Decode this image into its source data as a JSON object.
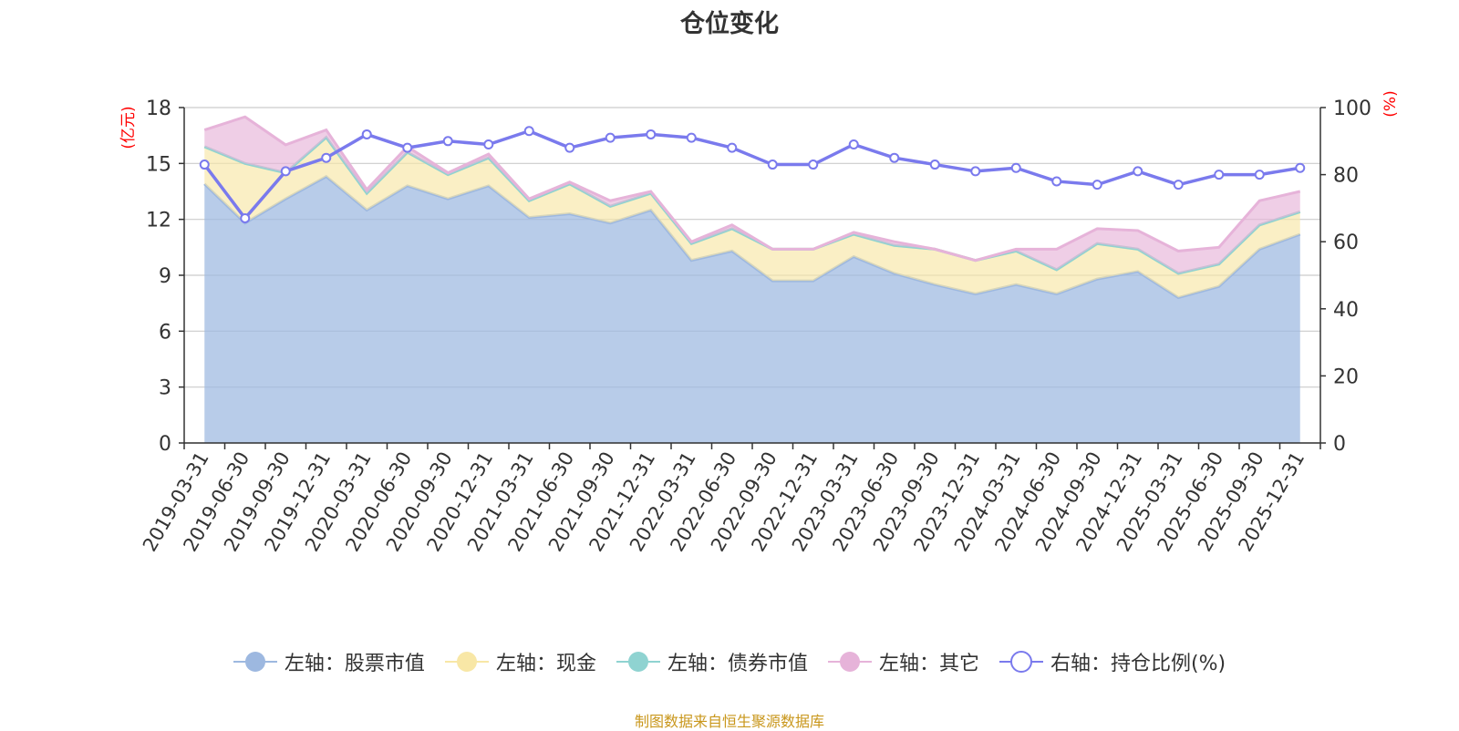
{
  "title": "仓位变化",
  "source": "制图数据来自恒生聚源数据库",
  "left_axis_unit": "(亿元)",
  "right_axis_unit": "(%)",
  "colors": {
    "stock": "#9db8e0",
    "cash": "#f8e7a6",
    "bond": "#8fd3d1",
    "other": "#e6b3d9",
    "ratio": "#7a7aed",
    "unit": "#ff0000",
    "source": "#c9971c"
  },
  "legend": [
    {
      "key": "stock",
      "label": "左轴：股票市值",
      "kind": "filled"
    },
    {
      "key": "cash",
      "label": "左轴：现金",
      "kind": "filled"
    },
    {
      "key": "bond",
      "label": "左轴：债券市值",
      "kind": "filled"
    },
    {
      "key": "other",
      "label": "左轴：其它",
      "kind": "filled"
    },
    {
      "key": "ratio",
      "label": "右轴：持仓比例(%)",
      "kind": "hollow"
    }
  ],
  "chart_data": {
    "type": "area",
    "stacked": true,
    "categories": [
      "2019-03-31",
      "2019-06-30",
      "2019-09-30",
      "2019-12-31",
      "2020-03-31",
      "2020-06-30",
      "2020-09-30",
      "2020-12-31",
      "2021-03-31",
      "2021-06-30",
      "2021-09-30",
      "2021-12-31",
      "2022-03-31",
      "2022-06-30",
      "2022-09-30",
      "2022-12-31",
      "2023-03-31",
      "2023-06-30",
      "2023-09-30",
      "2023-12-31",
      "2024-03-31",
      "2024-06-30",
      "2024-09-30",
      "2024-12-31",
      "2025-03-31",
      "2025-06-30",
      "2025-09-30",
      "2025-12-31"
    ],
    "left_axis": {
      "min": 0,
      "max": 18,
      "ticks": [
        0,
        3,
        6,
        9,
        12,
        15,
        18
      ],
      "unit": "(亿元)"
    },
    "right_axis": {
      "min": 0,
      "max": 100,
      "ticks": [
        0,
        20,
        40,
        60,
        80,
        100
      ],
      "unit": "(%)"
    },
    "series": [
      {
        "name": "左轴：股票市值",
        "axis": "left",
        "key": "stock",
        "values": [
          13.9,
          11.8,
          13.1,
          14.3,
          12.5,
          13.8,
          13.1,
          13.8,
          12.1,
          12.3,
          11.8,
          12.5,
          9.8,
          10.3,
          8.7,
          8.7,
          10.0,
          9.1,
          8.5,
          8.0,
          8.5,
          8.0,
          8.8,
          9.2,
          7.8,
          8.4,
          10.4,
          11.2
        ]
      },
      {
        "name": "左轴：现金",
        "axis": "left",
        "key": "cash",
        "values": [
          2.0,
          3.2,
          1.4,
          2.1,
          0.9,
          1.8,
          1.3,
          1.5,
          0.9,
          1.6,
          0.9,
          0.9,
          0.9,
          1.2,
          1.7,
          1.7,
          1.2,
          1.5,
          1.9,
          1.8,
          1.8,
          1.3,
          1.9,
          1.2,
          1.3,
          1.2,
          1.3,
          1.2
        ]
      },
      {
        "name": "左轴：债券市值",
        "axis": "left",
        "key": "bond",
        "values": [
          0,
          0,
          0,
          0,
          0,
          0,
          0,
          0,
          0,
          0,
          0,
          0,
          0,
          0,
          0,
          0,
          0,
          0,
          0,
          0,
          0,
          0,
          0,
          0,
          0,
          0,
          0,
          0
        ]
      },
      {
        "name": "左轴：其它",
        "axis": "left",
        "key": "other",
        "values": [
          0.9,
          2.5,
          1.5,
          0.4,
          0.2,
          0.3,
          0.1,
          0.2,
          0.1,
          0.1,
          0.3,
          0.1,
          0.1,
          0.2,
          0,
          0,
          0.1,
          0.2,
          0,
          0,
          0.1,
          1.1,
          0.8,
          1.0,
          1.2,
          0.9,
          1.3,
          1.1
        ]
      },
      {
        "name": "右轴：持仓比例(%)",
        "axis": "right",
        "key": "ratio",
        "type": "line",
        "values": [
          83,
          67,
          81,
          85,
          92,
          88,
          90,
          89,
          93,
          88,
          91,
          92,
          91,
          88,
          83,
          83,
          89,
          85,
          83,
          81,
          82,
          78,
          77,
          81,
          77,
          80,
          80,
          82
        ]
      }
    ]
  }
}
